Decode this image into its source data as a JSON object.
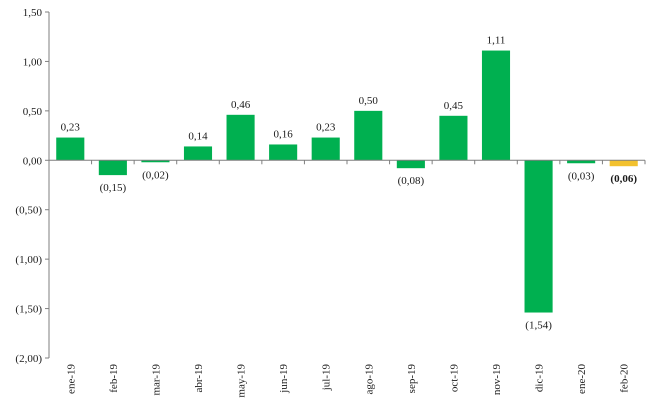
{
  "chart_data": {
    "type": "bar",
    "title": "",
    "xlabel": "",
    "ylabel": "",
    "ylim": [
      -2.0,
      1.5
    ],
    "ytick_values": [
      1.5,
      1.0,
      0.5,
      0.0,
      -0.5,
      -1.0,
      -1.5,
      -2.0
    ],
    "ytick_labels": [
      "1,50",
      "1,00",
      "0,50",
      "0,00",
      "(0,50)",
      "(1,00)",
      "(1,50)",
      "(2,00)"
    ],
    "categories": [
      "ene-19",
      "feb-19",
      "mar-19",
      "abr-19",
      "may-19",
      "jun-19",
      "jul-19",
      "ago-19",
      "sep-19",
      "oct-19",
      "nov-19",
      "dic-19",
      "ene-20",
      "feb-20"
    ],
    "values": [
      0.23,
      -0.15,
      -0.02,
      0.14,
      0.46,
      0.16,
      0.23,
      0.5,
      -0.08,
      0.45,
      1.11,
      -1.54,
      -0.03,
      -0.06
    ],
    "labels": [
      "0,23",
      "(0,15)",
      "(0,02)",
      "0,14",
      "0,46",
      "0,16",
      "0,23",
      "0,50",
      "(0,08)",
      "0,45",
      "1,11",
      "(1,54)",
      "(0,03)",
      "(0,06)"
    ],
    "highlight_index": 13,
    "colors": {
      "bar": "#00b050",
      "highlight": "#f2c12e",
      "axis": "#7f7f7f"
    },
    "grid": false
  }
}
